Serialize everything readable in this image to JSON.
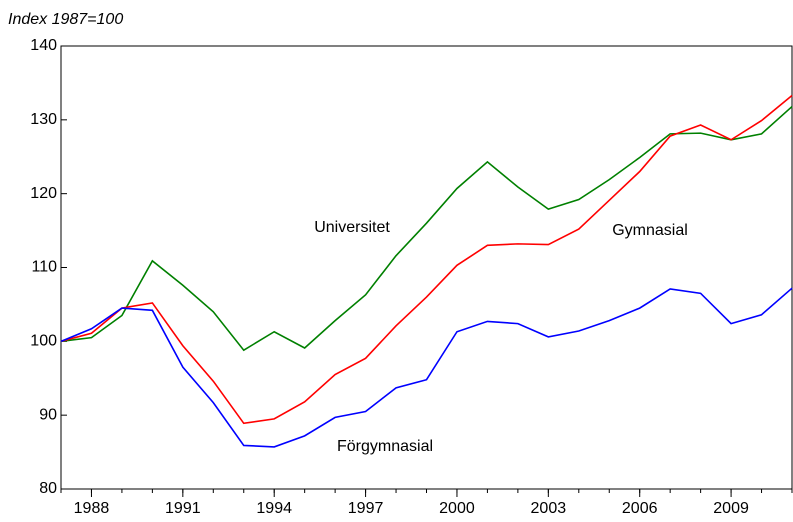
{
  "chart_data": {
    "type": "line",
    "y_label": "Index 1987=100",
    "x": [
      1987,
      1988,
      1989,
      1990,
      1991,
      1992,
      1993,
      1994,
      1995,
      1996,
      1997,
      1998,
      1999,
      2000,
      2001,
      2002,
      2003,
      2004,
      2005,
      2006,
      2007,
      2008,
      2009,
      2010,
      2011
    ],
    "series": [
      {
        "name": "Universitet",
        "color": "#008000",
        "values": [
          100,
          100.5,
          103.5,
          110.9,
          107.6,
          104,
          98.8,
          101.3,
          99.1,
          102.8,
          106.3,
          111.6,
          116,
          120.7,
          124.3,
          120.9,
          117.9,
          119.2,
          121.9,
          124.9,
          128.1,
          128.2,
          127.3,
          128.1,
          131.8
        ]
      },
      {
        "name": "Gymnasial",
        "color": "#ff0000",
        "values": [
          100,
          101.1,
          104.5,
          105.2,
          99.4,
          94.6,
          88.9,
          89.5,
          91.8,
          95.5,
          97.7,
          102.1,
          106,
          110.3,
          113,
          113.2,
          113.1,
          115.2,
          119.1,
          123,
          127.8,
          129.3,
          127.3,
          129.9,
          133.3
        ]
      },
      {
        "name": "Förgymnasial",
        "color": "#0000ff",
        "values": [
          100,
          101.7,
          104.5,
          104.2,
          96.5,
          91.7,
          85.9,
          85.7,
          87.2,
          89.7,
          90.5,
          93.7,
          94.8,
          101.3,
          102.7,
          102.4,
          100.6,
          101.4,
          102.8,
          104.5,
          107.1,
          106.5,
          102.4,
          103.6,
          107.2
        ]
      }
    ],
    "xlim": [
      1987,
      2011
    ],
    "xticks": [
      1988,
      1991,
      1994,
      1997,
      2000,
      2003,
      2006,
      2009
    ],
    "ylim": [
      80,
      140
    ],
    "yticks": [
      80,
      90,
      100,
      110,
      120,
      130,
      140
    ],
    "grid": false
  }
}
